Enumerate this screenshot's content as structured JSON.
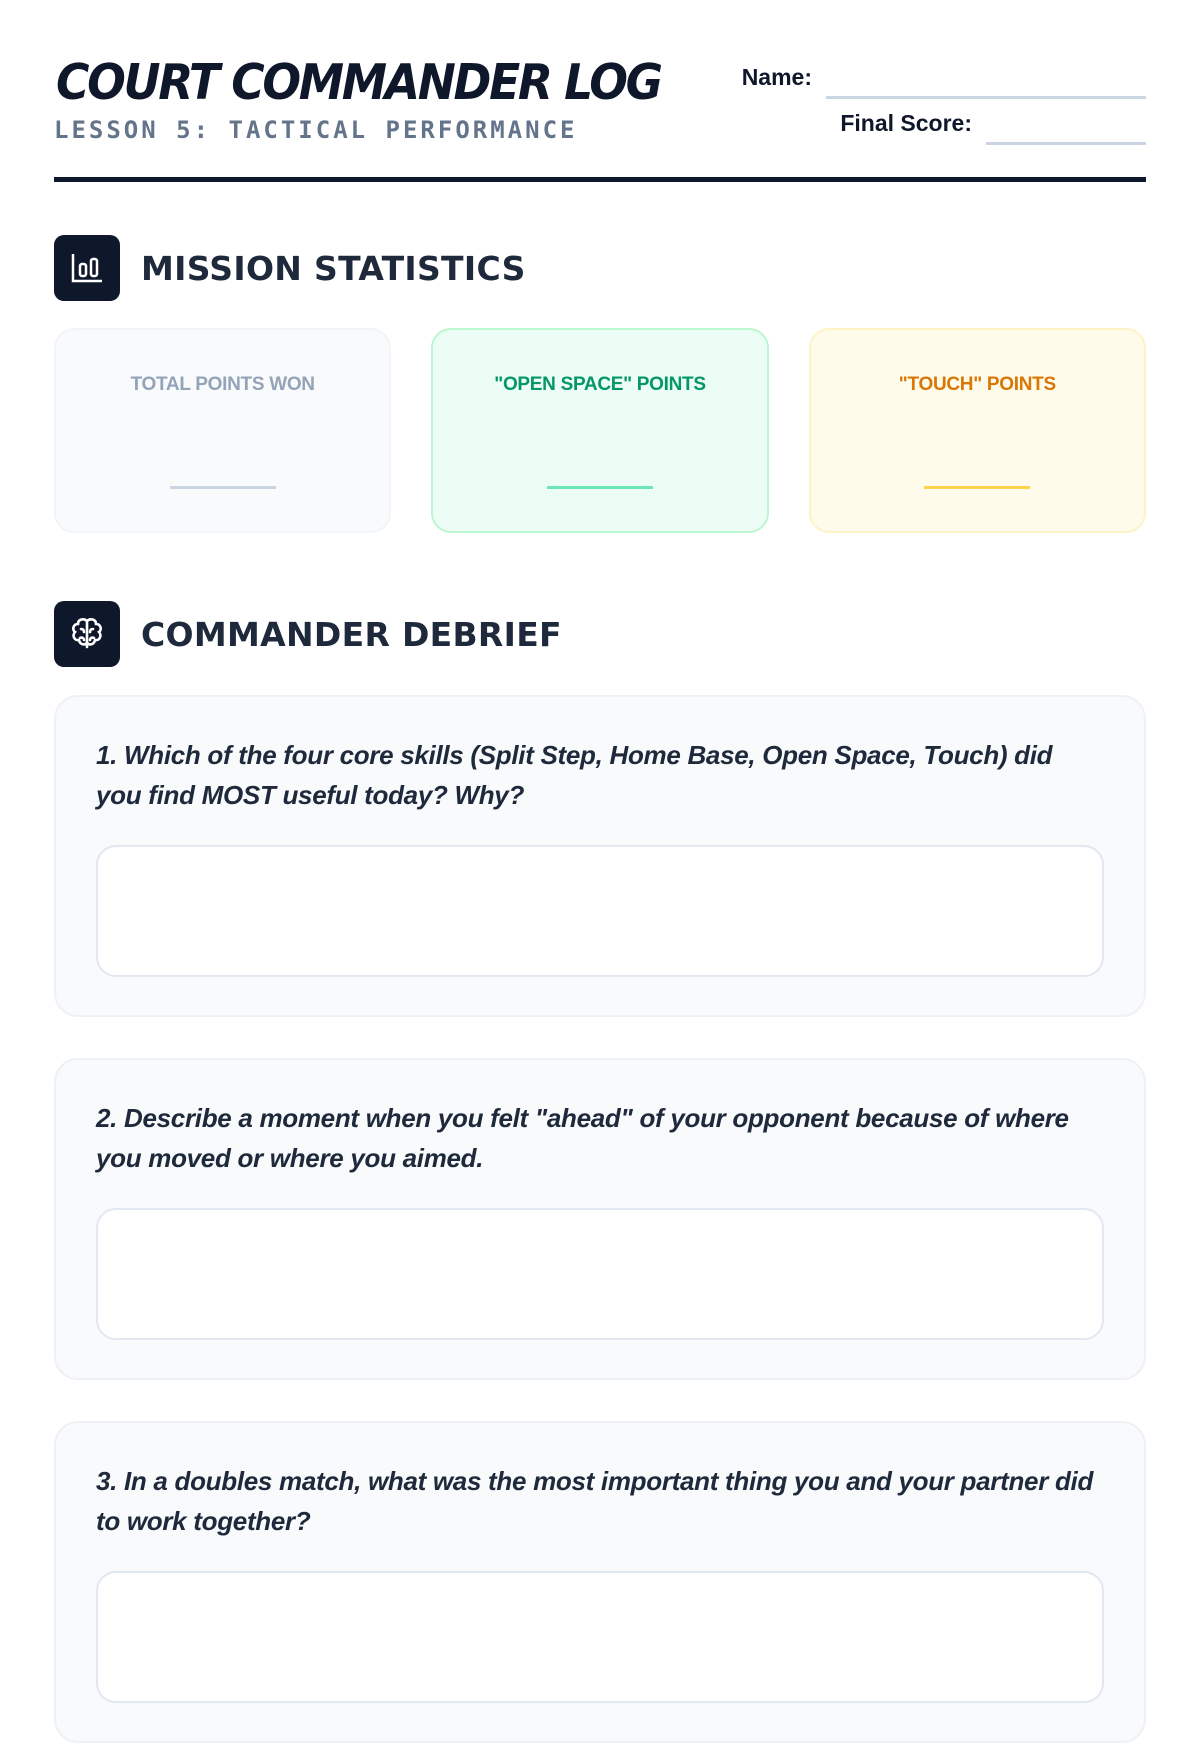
{
  "header": {
    "title": "COURT COMMANDER LOG",
    "subtitle": "LESSON 5: TACTICAL PERFORMANCE",
    "name_label": "Name:",
    "name_value": "",
    "score_label": "Final Score:",
    "score_value": ""
  },
  "stats": {
    "heading": "MISSION STATISTICS",
    "icon": "bar-chart-icon",
    "cards": [
      {
        "label": "TOTAL POINTS WON",
        "value": "",
        "color": "#94a3b8"
      },
      {
        "label": "\"OPEN SPACE\" POINTS",
        "value": "",
        "color": "#059669"
      },
      {
        "label": "\"TOUCH\" POINTS",
        "value": "",
        "color": "#d97706"
      }
    ]
  },
  "debrief": {
    "heading": "COMMANDER DEBRIEF",
    "icon": "brain-icon",
    "questions": [
      {
        "text": "1. Which of the four core skills (Split Step, Home Base, Open Space, Touch) did you find MOST useful today? Why?",
        "answer": ""
      },
      {
        "text": "2. Describe a moment when you felt \"ahead\" of your opponent because of where you moved or where you aimed.",
        "answer": ""
      },
      {
        "text": "3. In a doubles match, what was the most important thing you and your partner did to work together?",
        "answer": ""
      }
    ]
  }
}
